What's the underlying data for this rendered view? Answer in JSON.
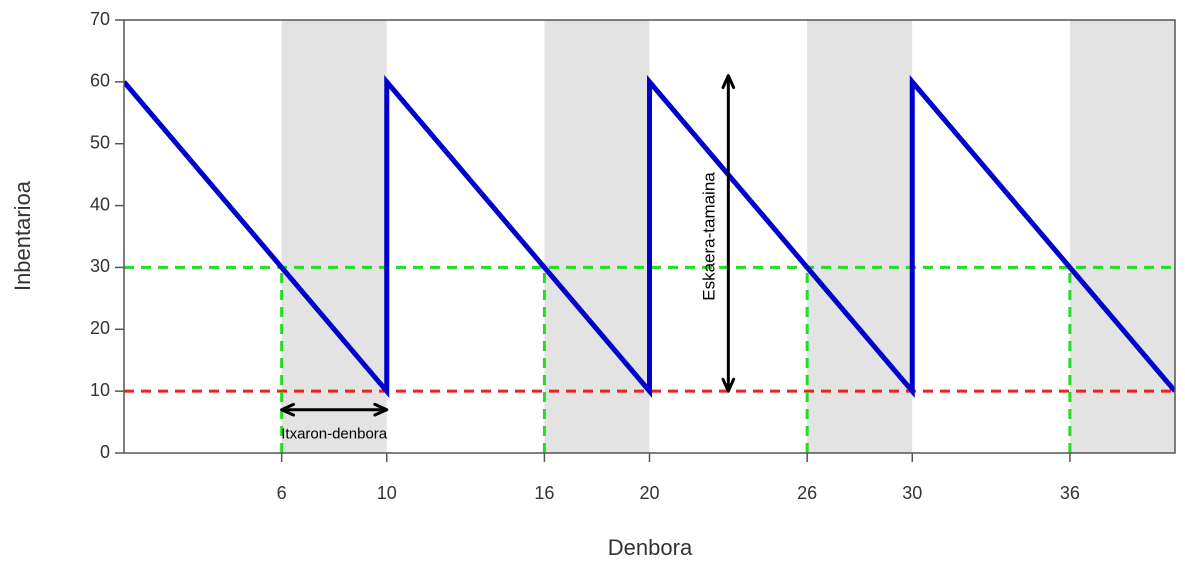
{
  "chart_data": {
    "type": "line",
    "xlabel": "Denbora",
    "ylabel": "Inbentarioa",
    "xlim": [
      0,
      40
    ],
    "ylim": [
      0,
      70
    ],
    "x_ticks": [
      6,
      10,
      16,
      20,
      26,
      30,
      36
    ],
    "y_ticks": [
      0,
      10,
      20,
      30,
      40,
      50,
      60,
      70
    ],
    "grid": false,
    "shaded_intervals": [
      [
        6,
        10
      ],
      [
        16,
        20
      ],
      [
        26,
        30
      ],
      [
        36,
        40
      ]
    ],
    "shade_color": "#e3e3e3",
    "series": [
      {
        "color": "#0000cc",
        "x": [
          0,
          10,
          10,
          20,
          20,
          30,
          30,
          40
        ],
        "y": [
          60,
          10,
          60,
          10,
          60,
          10,
          60,
          10
        ]
      }
    ],
    "reference_lines": [
      {
        "orientation": "horizontal",
        "value": 30,
        "color": "#22dd22",
        "style": "dashed"
      },
      {
        "orientation": "horizontal",
        "value": 10,
        "color": "#ee2222",
        "style": "dashed"
      },
      {
        "orientation": "vertical",
        "value": 6,
        "color": "#22dd22",
        "style": "dashed",
        "to_y": 30
      },
      {
        "orientation": "vertical",
        "value": 16,
        "color": "#22dd22",
        "style": "dashed",
        "to_y": 30
      },
      {
        "orientation": "vertical",
        "value": 26,
        "color": "#22dd22",
        "style": "dashed",
        "to_y": 30
      },
      {
        "orientation": "vertical",
        "value": 36,
        "color": "#22dd22",
        "style": "dashed",
        "to_y": 30
      }
    ],
    "annotations": [
      {
        "text": "Itxaron-denbora",
        "arrow_from": [
          6,
          7
        ],
        "arrow_to": [
          10,
          7
        ],
        "text_at": [
          8,
          3
        ]
      },
      {
        "text": "Eskaera-tamaina",
        "arrow_from": [
          23,
          10
        ],
        "arrow_to": [
          23,
          61
        ],
        "text_at": [
          22.3,
          35
        ],
        "rotated": true
      }
    ]
  }
}
